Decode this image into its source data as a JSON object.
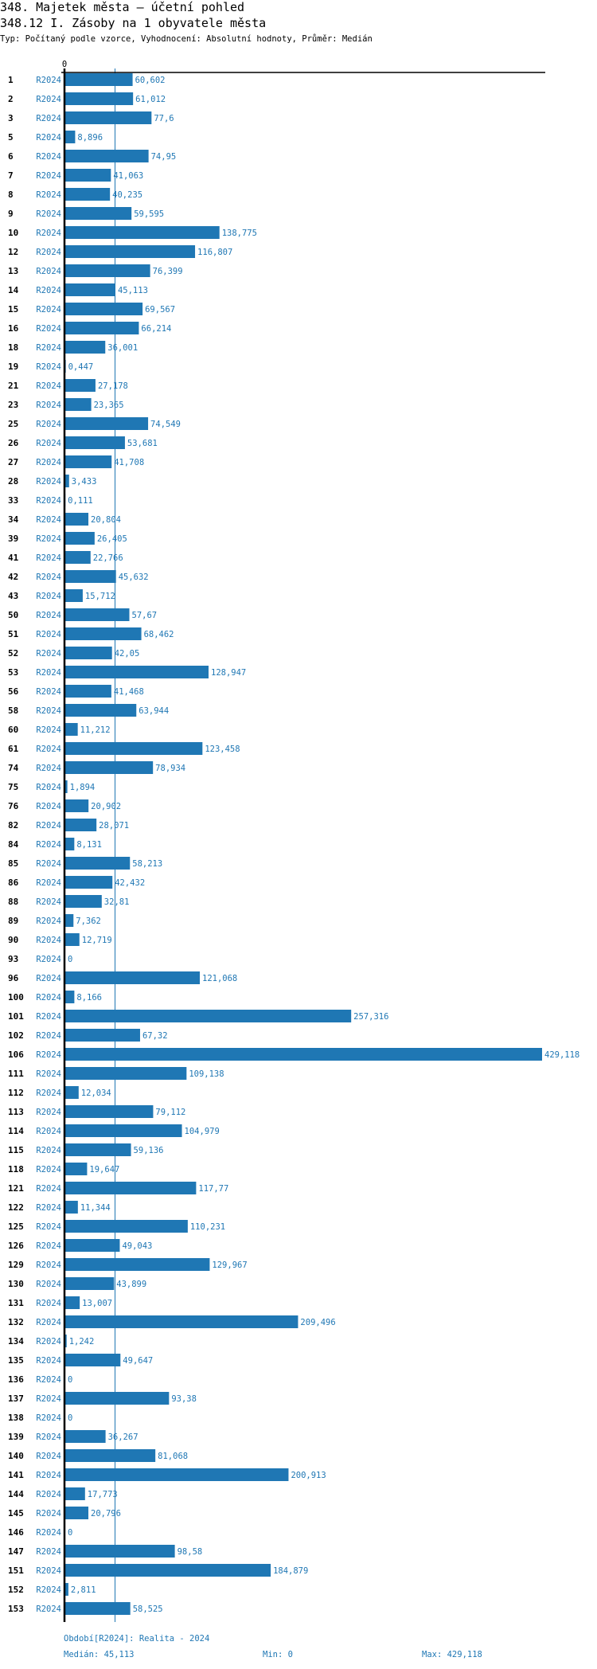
{
  "header": {
    "title": "348. Majetek města – účetní pohled",
    "subtitle": "348.12 I. Zásoby na 1 obyvatele města",
    "description": "Typ: Počítaný podle vzorce, Vyhodnocení: Absolutní hodnoty, Průměr: Medián"
  },
  "chart_data": {
    "type": "bar",
    "orientation": "horizontal",
    "title": "348.12 I. Zásoby na 1 obyvatele města",
    "xlabel": "",
    "ylabel": "",
    "x_axis_tick_labels": [
      "0"
    ],
    "xlim": [
      0,
      429.118
    ],
    "grid": false,
    "legend": "none",
    "series_name": "R2024",
    "bar_color": "#1f77b4",
    "median_line": 45.113,
    "categories": [
      "1",
      "2",
      "3",
      "5",
      "6",
      "7",
      "8",
      "9",
      "10",
      "12",
      "13",
      "14",
      "15",
      "16",
      "18",
      "19",
      "21",
      "23",
      "25",
      "26",
      "27",
      "28",
      "33",
      "34",
      "39",
      "41",
      "42",
      "43",
      "50",
      "51",
      "52",
      "53",
      "56",
      "58",
      "60",
      "61",
      "74",
      "75",
      "76",
      "82",
      "84",
      "85",
      "86",
      "88",
      "89",
      "90",
      "93",
      "96",
      "100",
      "101",
      "102",
      "106",
      "111",
      "112",
      "113",
      "114",
      "115",
      "118",
      "121",
      "122",
      "125",
      "126",
      "129",
      "130",
      "131",
      "132",
      "134",
      "135",
      "136",
      "137",
      "138",
      "139",
      "140",
      "141",
      "144",
      "145",
      "146",
      "147",
      "151",
      "152",
      "153"
    ],
    "values": [
      60.602,
      61.012,
      77.6,
      8.896,
      74.95,
      41.063,
      40.235,
      59.595,
      138.775,
      116.807,
      76.399,
      45.113,
      69.567,
      66.214,
      36.001,
      0.447,
      27.178,
      23.365,
      74.549,
      53.681,
      41.708,
      3.433,
      0.111,
      20.804,
      26.405,
      22.766,
      45.632,
      15.712,
      57.67,
      68.462,
      42.05,
      128.947,
      41.468,
      63.944,
      11.212,
      123.458,
      78.934,
      1.894,
      20.902,
      28.071,
      8.131,
      58.213,
      42.432,
      32.81,
      7.362,
      12.719,
      0,
      121.068,
      8.166,
      257.316,
      67.32,
      429.118,
      109.138,
      12.034,
      79.112,
      104.979,
      59.136,
      19.647,
      117.77,
      11.344,
      110.231,
      49.043,
      129.967,
      43.899,
      13.007,
      209.496,
      1.242,
      49.647,
      0,
      93.38,
      0,
      36.267,
      81.068,
      200.913,
      17.773,
      20.796,
      0,
      98.58,
      184.879,
      2.811,
      58.525
    ],
    "value_labels": [
      "60,602",
      "61,012",
      "77,6",
      "8,896",
      "74,95",
      "41,063",
      "40,235",
      "59,595",
      "138,775",
      "116,807",
      "76,399",
      "45,113",
      "69,567",
      "66,214",
      "36,001",
      "0,447",
      "27,178",
      "23,365",
      "74,549",
      "53,681",
      "41,708",
      "3,433",
      "0,111",
      "20,804",
      "26,405",
      "22,766",
      "45,632",
      "15,712",
      "57,67",
      "68,462",
      "42,05",
      "128,947",
      "41,468",
      "63,944",
      "11,212",
      "123,458",
      "78,934",
      "1,894",
      "20,902",
      "28,071",
      "8,131",
      "58,213",
      "42,432",
      "32,81",
      "7,362",
      "12,719",
      "0",
      "121,068",
      "8,166",
      "257,316",
      "67,32",
      "429,118",
      "109,138",
      "12,034",
      "79,112",
      "104,979",
      "59,136",
      "19,647",
      "117,77",
      "11,344",
      "110,231",
      "49,043",
      "129,967",
      "43,899",
      "13,007",
      "209,496",
      "1,242",
      "49,647",
      "0",
      "93,38",
      "0",
      "36,267",
      "81,068",
      "200,913",
      "17,773",
      "20,796",
      "0",
      "98,58",
      "184,879",
      "2,811",
      "58,525"
    ]
  },
  "footer": {
    "period": "Období[R2024]: Realita - 2024",
    "median": "Medián: 45,113",
    "min": "Min: 0",
    "max": "Max: 429,118"
  }
}
